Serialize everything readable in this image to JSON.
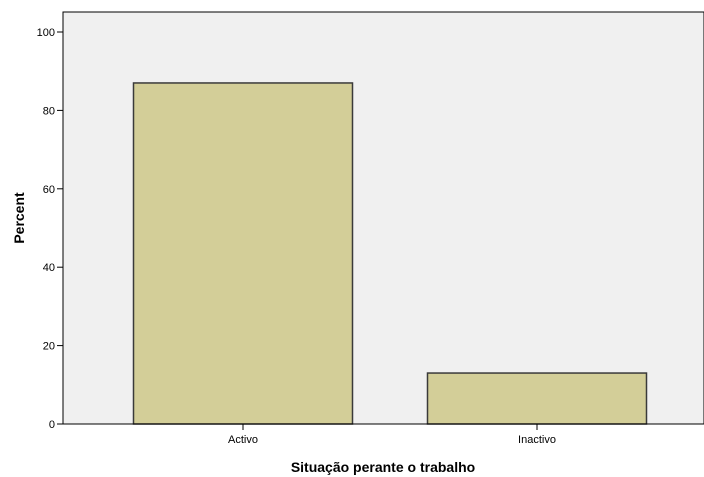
{
  "chart_data": {
    "type": "bar",
    "categories": [
      "Activo",
      "Inactivo"
    ],
    "values": [
      87,
      13
    ],
    "title": "",
    "xlabel": "Situação perante o trabalho",
    "ylabel": "Percent",
    "ylim": [
      0,
      100
    ],
    "yticks": [
      0,
      20,
      40,
      60,
      80,
      100
    ],
    "grid": false,
    "legend": "none",
    "colors": {
      "bar_fill": "#d3ce98",
      "bar_stroke": "#3a3a3a",
      "plot_background": "#f0f0f0",
      "axis": "#000000"
    }
  }
}
